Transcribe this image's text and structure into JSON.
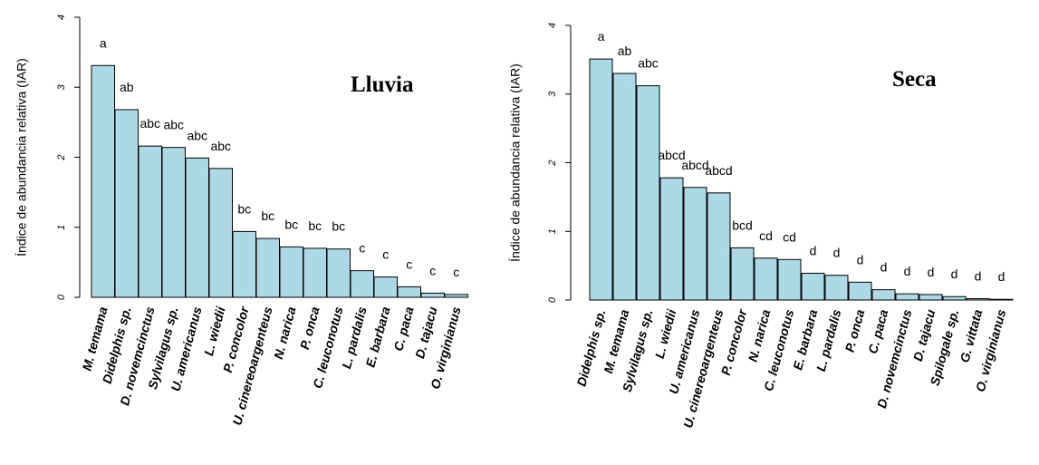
{
  "chart_data": [
    {
      "type": "bar",
      "title": "Lluvia",
      "ylabel": "Índice de abundancia relativa (IAR)",
      "xlabel": "",
      "ylim": [
        0,
        4
      ],
      "yticks": [
        "0",
        "1",
        "2",
        "3",
        "4"
      ],
      "bar_color": "#add8e6",
      "categories": [
        "M. temama",
        "Didelphis sp.",
        "D. novemcinctus",
        "Sylvilagus sp.",
        "U. americanus",
        "L. wiedii",
        "P. concolor",
        "U. cinereoargenteus",
        "N. narica",
        "P. onca",
        "C. leuconotus",
        "L. pardalis",
        "E. barbara",
        "C. paca",
        "D. tajacu",
        "O. virginianus"
      ],
      "values": [
        3.31,
        2.68,
        2.16,
        2.14,
        1.99,
        1.84,
        0.94,
        0.84,
        0.72,
        0.7,
        0.69,
        0.38,
        0.29,
        0.15,
        0.06,
        0.04
      ],
      "group_letters": [
        "a",
        "ab",
        "abc",
        "abc",
        "abc",
        "abc",
        "bc",
        "bc",
        "bc",
        "bc",
        "bc",
        "c",
        "c",
        "c",
        "c",
        "c"
      ]
    },
    {
      "type": "bar",
      "title": "Seca",
      "ylabel": "Índice de abundancia relativa (IAR)",
      "xlabel": "",
      "ylim": [
        0,
        4
      ],
      "yticks": [
        "0",
        "1",
        "2",
        "3",
        "4"
      ],
      "bar_color": "#add8e6",
      "categories": [
        "Didelphis sp.",
        "M. temama",
        "Sylvilagus sp.",
        "L. wiedii",
        "U. americanus",
        "U. cinereoargenteus",
        "P. concolor",
        "N. narica",
        "C. leuconotus",
        "E. barbara",
        "L. pardalis",
        "P. onca",
        "C. paca",
        "D. novemcinctus",
        "D. tajacu",
        "Spilogale sp.",
        "G. vittata",
        "O. virginianus"
      ],
      "values": [
        3.51,
        3.3,
        3.12,
        1.78,
        1.64,
        1.56,
        0.76,
        0.61,
        0.59,
        0.39,
        0.36,
        0.26,
        0.15,
        0.09,
        0.08,
        0.05,
        0.02,
        0.01
      ],
      "group_letters": [
        "a",
        "ab",
        "abc",
        "abcd",
        "abcd",
        "abcd",
        "bcd",
        "cd",
        "cd",
        "d",
        "d",
        "d",
        "d",
        "d",
        "d",
        "d",
        "d",
        "d"
      ]
    }
  ]
}
